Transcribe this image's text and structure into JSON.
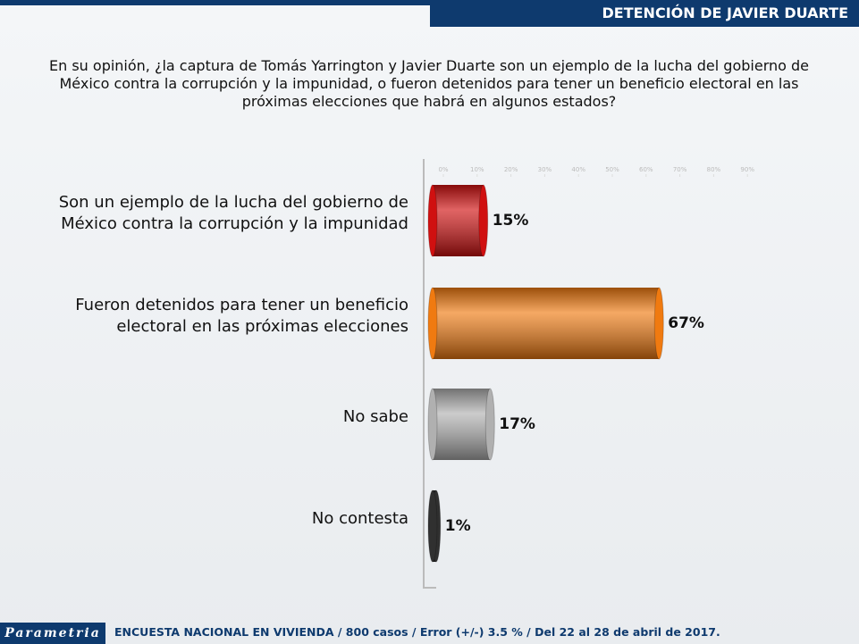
{
  "header": "DETENCIÓN DE JAVIER DUARTE",
  "brand": "Parametria",
  "footer": "ENCUESTA NACIONAL EN VIVIENDA / 800 casos / Error (+/-) 3.5 % / Del 22 al 28 de abril de 2017.",
  "chart_data": {
    "type": "bar",
    "orientation": "horizontal",
    "title": "En su opinión, ¿la captura de Tomás Yarrington y Javier Duarte son un ejemplo de la lucha del gobierno de México contra la corrupción y la impunidad, o fueron detenidos para tener un beneficio electoral en las próximas elecciones que habrá en algunos estados?",
    "categories": [
      "Son un ejemplo de la lucha del gobierno de México contra la corrupción y la impunidad",
      "Fueron detenidos para tener un beneficio electoral en las próximas elecciones",
      "No sabe",
      "No contesta"
    ],
    "values": [
      15,
      67,
      17,
      1
    ],
    "value_labels": [
      "15%",
      "67%",
      "17%",
      "1%"
    ],
    "colors": [
      "#d01010",
      "#f07a10",
      "#b0b0b0",
      "#303030"
    ],
    "xlim": [
      0,
      100
    ],
    "xticks": [
      {
        "value": 0,
        "label": "0%"
      },
      {
        "value": 10,
        "label": "10%"
      },
      {
        "value": 20,
        "label": "20%"
      },
      {
        "value": 30,
        "label": "30%"
      },
      {
        "value": 40,
        "label": "40%"
      },
      {
        "value": 50,
        "label": "50%"
      },
      {
        "value": 60,
        "label": "60%"
      },
      {
        "value": 70,
        "label": "70%"
      },
      {
        "value": 80,
        "label": "80%"
      },
      {
        "value": 90,
        "label": "90%"
      }
    ]
  }
}
